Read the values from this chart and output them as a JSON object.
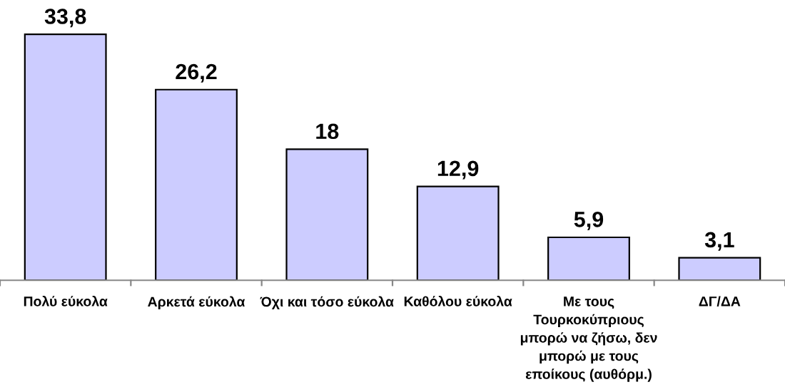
{
  "chart_data": {
    "type": "bar",
    "categories": [
      "Πολύ εύκολα",
      "Αρκετά εύκολα",
      "Όχι και τόσο εύκολα",
      "Καθόλου εύκολα",
      "Με τους\nΤουρκοκύπριους\nμπορώ να ζήσω, δεν\nμπορώ με τους\nεποίκους (αυθόρμ.)",
      "ΔΓ/ΔΑ"
    ],
    "values": [
      33.8,
      26.2,
      18,
      12.9,
      5.9,
      3.1
    ],
    "value_labels": [
      "33,8",
      "26,2",
      "18",
      "12,9",
      "5,9",
      "3,1"
    ],
    "color": "#ccccff",
    "grid": false,
    "legend": false
  }
}
